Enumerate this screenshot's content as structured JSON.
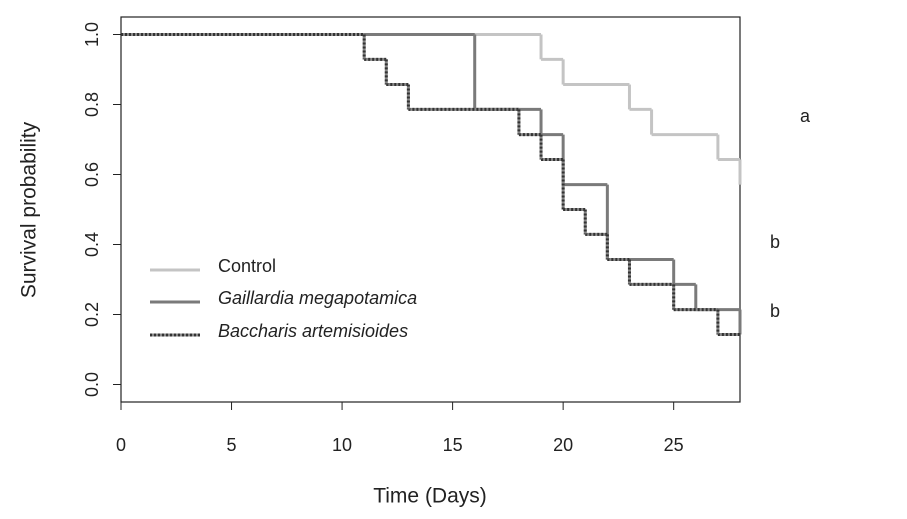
{
  "chart_data": {
    "type": "step",
    "xlabel": "Time (Days)",
    "ylabel": "Survival probability",
    "xlim": [
      0,
      28
    ],
    "ylim": [
      -0.05,
      1.05
    ],
    "xticks": [
      0,
      5,
      10,
      15,
      20,
      25
    ],
    "yticks": [
      {
        "value": 0,
        "label": "0.0"
      },
      {
        "value": 0.2,
        "label": "0.2"
      },
      {
        "value": 0.4,
        "label": "0.4"
      },
      {
        "value": 0.6,
        "label": "0.6"
      },
      {
        "value": 0.8,
        "label": "0.8"
      },
      {
        "value": 1,
        "label": "1.0"
      }
    ],
    "series": [
      {
        "name": "Control",
        "color": "#c4c4c4",
        "x": [
          0,
          19,
          20,
          23,
          24,
          27,
          28
        ],
        "values": [
          1,
          0.929,
          0.857,
          0.786,
          0.714,
          0.643,
          0.571
        ]
      },
      {
        "name": "Gaillardia megapotamica",
        "color": "#7a7a7a",
        "x": [
          0,
          16,
          19,
          20,
          22,
          25,
          26,
          28
        ],
        "values": [
          1,
          0.786,
          0.714,
          0.571,
          0.357,
          0.286,
          0.214,
          0.143
        ]
      },
      {
        "name": "Baccharis artemisioides",
        "color": "#333333",
        "x": [
          0,
          11,
          12,
          13,
          18,
          19,
          20,
          21,
          22,
          23,
          25,
          27,
          28
        ],
        "values": [
          1,
          0.929,
          0.857,
          0.786,
          0.714,
          0.643,
          0.5,
          0.429,
          0.357,
          0.286,
          0.214,
          0.143,
          0.143
        ]
      }
    ],
    "annotations": [
      "a",
      "b",
      "b"
    ]
  }
}
